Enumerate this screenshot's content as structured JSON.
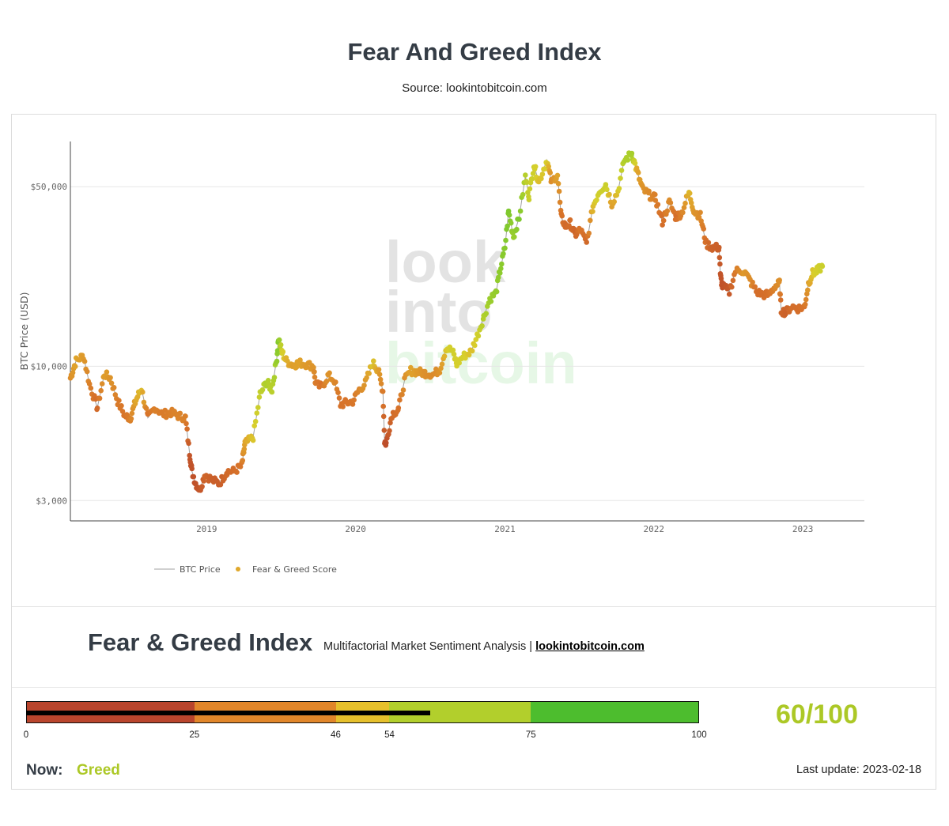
{
  "header": {
    "title": "Fear And Greed Index",
    "subtitle": "Source: lookintobitcoin.com"
  },
  "watermark": [
    "look",
    "into",
    "bitcoin"
  ],
  "chart_data": {
    "type": "scatter",
    "title": "",
    "xlabel": "",
    "ylabel": "BTC Price (USD)",
    "y_scale": "log",
    "ylim": [
      2500,
      75000
    ],
    "xlim": [
      "2018-02-01",
      "2023-06-01"
    ],
    "x_ticks": [
      "2019",
      "2020",
      "2021",
      "2022",
      "2023"
    ],
    "y_ticks": [
      {
        "value": 3000,
        "label": "$3,000"
      },
      {
        "value": 10000,
        "label": "$10,000"
      },
      {
        "value": 50000,
        "label": "$50,000"
      }
    ],
    "grid": true,
    "legend": {
      "position": "bottom-left",
      "entries": [
        "BTC Price",
        "Fear & Greed Score"
      ]
    },
    "color_scale": {
      "domain": [
        0,
        25,
        46,
        54,
        75,
        100
      ],
      "colors": [
        "#b5422a",
        "#d8742a",
        "#e0a82c",
        "#d8cf2c",
        "#a6cf2c",
        "#4cc030"
      ]
    },
    "series": [
      {
        "name": "BTC Price",
        "color": "#a0a0a0",
        "x": [
          "2018-02-01",
          "2018-02-15",
          "2018-03-05",
          "2018-03-20",
          "2018-04-08",
          "2018-04-25",
          "2018-05-10",
          "2018-05-28",
          "2018-06-15",
          "2018-06-28",
          "2018-07-12",
          "2018-07-25",
          "2018-08-10",
          "2018-08-28",
          "2018-09-15",
          "2018-10-05",
          "2018-10-25",
          "2018-11-10",
          "2018-11-20",
          "2018-11-26",
          "2018-12-05",
          "2018-12-15",
          "2018-12-28",
          "2019-01-15",
          "2019-02-01",
          "2019-02-20",
          "2019-03-10",
          "2019-03-28",
          "2019-04-05",
          "2019-04-25",
          "2019-05-12",
          "2019-05-28",
          "2019-06-10",
          "2019-06-22",
          "2019-06-26",
          "2019-07-05",
          "2019-07-15",
          "2019-08-01",
          "2019-08-15",
          "2019-09-01",
          "2019-09-20",
          "2019-09-25",
          "2019-10-10",
          "2019-10-26",
          "2019-11-10",
          "2019-11-25",
          "2019-12-10",
          "2019-12-25",
          "2020-01-10",
          "2020-01-25",
          "2020-02-12",
          "2020-02-25",
          "2020-03-08",
          "2020-03-12",
          "2020-03-16",
          "2020-03-30",
          "2020-04-15",
          "2020-04-30",
          "2020-05-15",
          "2020-06-01",
          "2020-06-20",
          "2020-07-10",
          "2020-07-25",
          "2020-08-10",
          "2020-08-25",
          "2020-09-05",
          "2020-09-20",
          "2020-10-10",
          "2020-10-25",
          "2020-11-10",
          "2020-11-25",
          "2020-12-10",
          "2020-12-20",
          "2021-01-01",
          "2021-01-10",
          "2021-01-22",
          "2021-02-05",
          "2021-02-20",
          "2021-03-01",
          "2021-03-13",
          "2021-03-25",
          "2021-04-14",
          "2021-04-25",
          "2021-05-10",
          "2021-05-19",
          "2021-05-30",
          "2021-06-10",
          "2021-06-22",
          "2021-07-05",
          "2021-07-20",
          "2021-08-05",
          "2021-08-20",
          "2021-09-05",
          "2021-09-20",
          "2021-10-05",
          "2021-10-20",
          "2021-11-08",
          "2021-11-20",
          "2021-12-04",
          "2021-12-20",
          "2022-01-05",
          "2022-01-22",
          "2022-02-08",
          "2022-02-24",
          "2022-03-10",
          "2022-03-28",
          "2022-04-10",
          "2022-04-25",
          "2022-05-09",
          "2022-05-25",
          "2022-06-10",
          "2022-06-13",
          "2022-06-18",
          "2022-07-05",
          "2022-07-20",
          "2022-08-10",
          "2022-08-25",
          "2022-09-10",
          "2022-09-25",
          "2022-10-10",
          "2022-10-25",
          "2022-11-05",
          "2022-11-09",
          "2022-11-20",
          "2022-12-05",
          "2022-12-20",
          "2023-01-05",
          "2023-01-15",
          "2023-01-25",
          "2023-02-05",
          "2023-02-18"
        ],
        "y": [
          9000,
          10500,
          11000,
          8500,
          6900,
          9300,
          9000,
          7300,
          6400,
          6300,
          7400,
          8200,
          6300,
          6900,
          6500,
          6600,
          6400,
          6300,
          4600,
          3900,
          3500,
          3300,
          3800,
          3600,
          3500,
          3900,
          3900,
          4100,
          5000,
          5300,
          7800,
          8700,
          8100,
          10800,
          12800,
          11300,
          10500,
          10100,
          10300,
          10200,
          10000,
          8500,
          8300,
          9200,
          8800,
          7100,
          7200,
          7300,
          8100,
          8600,
          10300,
          9700,
          8000,
          5100,
          5000,
          6500,
          6800,
          8800,
          9600,
          9500,
          9400,
          9300,
          9700,
          11800,
          11500,
          10200,
          10900,
          11400,
          13100,
          15500,
          18300,
          19300,
          23500,
          29000,
          40000,
          32000,
          38000,
          55000,
          46000,
          61000,
          52000,
          63500,
          52000,
          56000,
          38000,
          35000,
          36000,
          32500,
          34000,
          30000,
          42000,
          48000,
          51000,
          43000,
          48000,
          63000,
          67500,
          58000,
          49000,
          46500,
          45000,
          36500,
          43500,
          38000,
          39500,
          47500,
          40000,
          38500,
          30000,
          29000,
          29000,
          22500,
          20500,
          19500,
          23500,
          23500,
          21500,
          19500,
          19000,
          19000,
          20500,
          21000,
          16500,
          16200,
          17100,
          16800,
          17000,
          21000,
          23000,
          23500,
          24500
        ]
      },
      {
        "name": "Fear & Greed Score",
        "color": "#e0a82c",
        "score": [
          35,
          45,
          40,
          30,
          20,
          42,
          38,
          28,
          25,
          30,
          46,
          50,
          25,
          30,
          28,
          30,
          32,
          30,
          10,
          8,
          8,
          10,
          18,
          15,
          14,
          20,
          22,
          26,
          45,
          52,
          62,
          72,
          66,
          80,
          85,
          55,
          48,
          42,
          44,
          40,
          38,
          28,
          24,
          38,
          34,
          24,
          25,
          26,
          32,
          40,
          52,
          44,
          28,
          8,
          6,
          20,
          24,
          36,
          44,
          40,
          36,
          34,
          38,
          52,
          58,
          55,
          56,
          50,
          56,
          70,
          78,
          80,
          82,
          84,
          86,
          78,
          86,
          68,
          60,
          58,
          50,
          55,
          34,
          44,
          25,
          20,
          22,
          18,
          26,
          20,
          50,
          58,
          60,
          42,
          52,
          70,
          74,
          46,
          38,
          34,
          30,
          22,
          35,
          22,
          30,
          50,
          38,
          34,
          22,
          16,
          15,
          10,
          8,
          12,
          28,
          40,
          35,
          22,
          22,
          24,
          32,
          36,
          18,
          16,
          22,
          22,
          25,
          42,
          52,
          56,
          60
        ]
      }
    ]
  },
  "footer": {
    "brand_title": "Fear & Greed Index",
    "brand_tagline": "Multifactorial Market Sentiment Analysis | ",
    "brand_link": "lookintobitcoin.com",
    "gauge": {
      "value": 60,
      "segments": [
        {
          "from": 0,
          "to": 25,
          "color": "#b9452d"
        },
        {
          "from": 25,
          "to": 46,
          "color": "#e1862a"
        },
        {
          "from": 46,
          "to": 54,
          "color": "#e6c02c"
        },
        {
          "from": 54,
          "to": 75,
          "color": "#b2cf2c"
        },
        {
          "from": 75,
          "to": 100,
          "color": "#4dbd2e"
        }
      ],
      "ticks": [
        "0",
        "25",
        "46",
        "54",
        "75",
        "100"
      ]
    },
    "score_text": "60/100",
    "score_color": "#acc826",
    "now_label": "Now:",
    "now_value": "Greed",
    "now_color": "#acc826",
    "last_update": "Last update: 2023-02-18"
  }
}
